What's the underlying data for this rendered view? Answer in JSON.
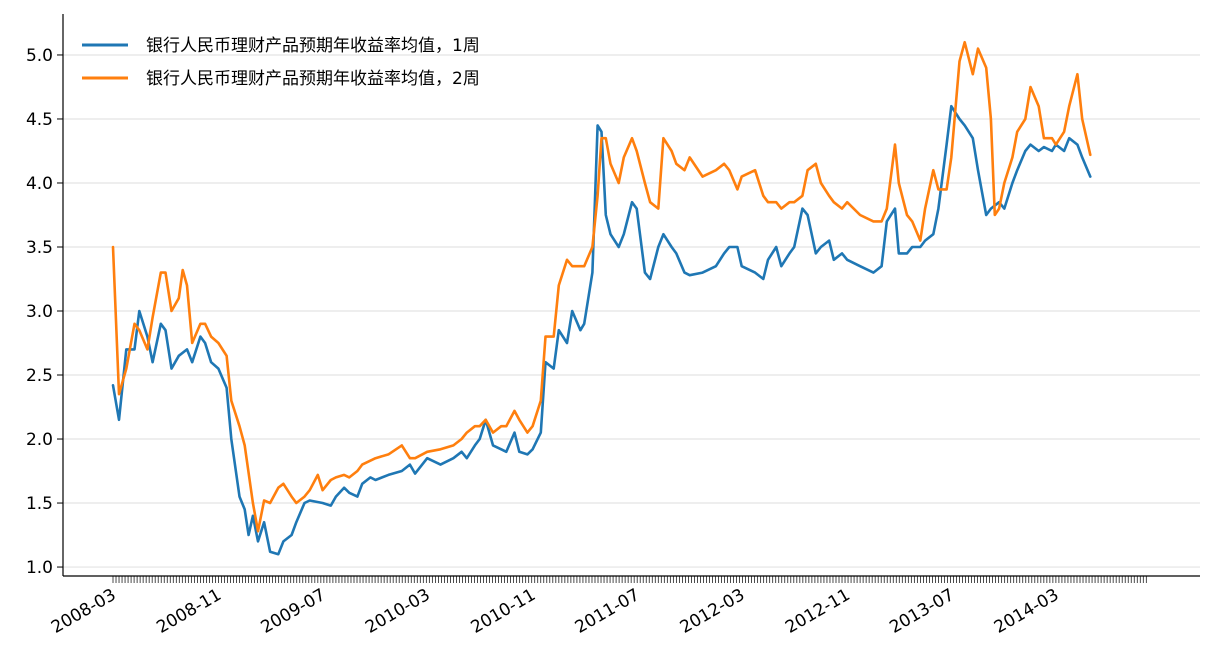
{
  "chart_data": {
    "type": "line",
    "title": "",
    "xlabel": "",
    "ylabel": "",
    "ylim": [
      0.93,
      5.32
    ],
    "y_ticks": [
      "1.0",
      "1.5",
      "2.0",
      "2.5",
      "3.0",
      "3.5",
      "4.0",
      "4.5",
      "5.0"
    ],
    "x_tick_labels": [
      "2008-03",
      "2008-11",
      "2009-07",
      "2010-03",
      "2010-11",
      "2011-07",
      "2012-03",
      "2012-11",
      "2013-07",
      "2014-03"
    ],
    "x_range": [
      "2008-03",
      "2014-10"
    ],
    "grid": "horizontal",
    "legend_position": "top-left",
    "series": [
      {
        "name": "银行人民币理财产品预期年收益率均值，1周",
        "color": "#1f77b4",
        "points": [
          [
            "2008-03",
            2.42
          ],
          [
            "2008-03-15",
            2.15
          ],
          [
            "2008-04",
            2.7
          ],
          [
            "2008-04-20",
            2.7
          ],
          [
            "2008-05",
            3.0
          ],
          [
            "2008-05-20",
            2.8
          ],
          [
            "2008-06",
            2.6
          ],
          [
            "2008-06-20",
            2.9
          ],
          [
            "2008-07",
            2.85
          ],
          [
            "2008-07-15",
            2.55
          ],
          [
            "2008-08",
            2.65
          ],
          [
            "2008-08-20",
            2.7
          ],
          [
            "2008-09",
            2.6
          ],
          [
            "2008-09-20",
            2.8
          ],
          [
            "2008-10",
            2.75
          ],
          [
            "2008-10-15",
            2.6
          ],
          [
            "2008-11",
            2.55
          ],
          [
            "2008-11-20",
            2.4
          ],
          [
            "2008-12",
            2.0
          ],
          [
            "2008-12-20",
            1.55
          ],
          [
            "2009-01",
            1.45
          ],
          [
            "2009-01-10",
            1.25
          ],
          [
            "2009-01-20",
            1.4
          ],
          [
            "2009-02",
            1.2
          ],
          [
            "2009-02-15",
            1.35
          ],
          [
            "2009-03",
            1.12
          ],
          [
            "2009-03-20",
            1.1
          ],
          [
            "2009-04",
            1.2
          ],
          [
            "2009-04-20",
            1.25
          ],
          [
            "2009-05",
            1.35
          ],
          [
            "2009-05-20",
            1.5
          ],
          [
            "2009-06",
            1.52
          ],
          [
            "2009-07",
            1.5
          ],
          [
            "2009-07-20",
            1.48
          ],
          [
            "2009-08",
            1.55
          ],
          [
            "2009-08-20",
            1.62
          ],
          [
            "2009-09",
            1.58
          ],
          [
            "2009-09-20",
            1.55
          ],
          [
            "2009-10",
            1.65
          ],
          [
            "2009-10-20",
            1.7
          ],
          [
            "2009-11",
            1.68
          ],
          [
            "2009-12",
            1.72
          ],
          [
            "2010-01",
            1.75
          ],
          [
            "2010-01-20",
            1.8
          ],
          [
            "2010-02",
            1.73
          ],
          [
            "2010-03",
            1.85
          ],
          [
            "2010-04",
            1.8
          ],
          [
            "2010-05",
            1.85
          ],
          [
            "2010-05-20",
            1.9
          ],
          [
            "2010-06",
            1.85
          ],
          [
            "2010-06-20",
            1.95
          ],
          [
            "2010-07",
            2.0
          ],
          [
            "2010-07-15",
            2.15
          ],
          [
            "2010-08",
            1.95
          ],
          [
            "2010-08-20",
            1.92
          ],
          [
            "2010-09",
            1.9
          ],
          [
            "2010-09-20",
            2.05
          ],
          [
            "2010-10",
            1.9
          ],
          [
            "2010-10-20",
            1.88
          ],
          [
            "2010-11",
            1.92
          ],
          [
            "2010-11-20",
            2.05
          ],
          [
            "2010-12",
            2.6
          ],
          [
            "2010-12-20",
            2.55
          ],
          [
            "2011-01",
            2.85
          ],
          [
            "2011-01-20",
            2.75
          ],
          [
            "2011-02",
            3.0
          ],
          [
            "2011-02-20",
            2.85
          ],
          [
            "2011-03",
            2.9
          ],
          [
            "2011-03-20",
            3.3
          ],
          [
            "2011-04",
            4.45
          ],
          [
            "2011-04-10",
            4.4
          ],
          [
            "2011-04-20",
            3.75
          ],
          [
            "2011-05",
            3.6
          ],
          [
            "2011-05-20",
            3.5
          ],
          [
            "2011-06",
            3.6
          ],
          [
            "2011-06-20",
            3.85
          ],
          [
            "2011-07",
            3.8
          ],
          [
            "2011-07-20",
            3.3
          ],
          [
            "2011-08",
            3.25
          ],
          [
            "2011-08-20",
            3.5
          ],
          [
            "2011-09",
            3.6
          ],
          [
            "2011-09-20",
            3.5
          ],
          [
            "2011-10",
            3.45
          ],
          [
            "2011-10-20",
            3.3
          ],
          [
            "2011-11",
            3.28
          ],
          [
            "2011-12",
            3.3
          ],
          [
            "2012-01",
            3.35
          ],
          [
            "2012-01-20",
            3.45
          ],
          [
            "2012-02",
            3.5
          ],
          [
            "2012-02-20",
            3.5
          ],
          [
            "2012-03",
            3.35
          ],
          [
            "2012-04",
            3.3
          ],
          [
            "2012-04-20",
            3.25
          ],
          [
            "2012-05",
            3.4
          ],
          [
            "2012-05-20",
            3.5
          ],
          [
            "2012-06",
            3.35
          ],
          [
            "2012-06-20",
            3.45
          ],
          [
            "2012-07",
            3.5
          ],
          [
            "2012-07-20",
            3.8
          ],
          [
            "2012-08",
            3.75
          ],
          [
            "2012-08-20",
            3.45
          ],
          [
            "2012-09",
            3.5
          ],
          [
            "2012-09-20",
            3.55
          ],
          [
            "2012-10",
            3.4
          ],
          [
            "2012-10-20",
            3.45
          ],
          [
            "2012-11",
            3.4
          ],
          [
            "2012-12",
            3.35
          ],
          [
            "2013-01",
            3.3
          ],
          [
            "2013-01-20",
            3.35
          ],
          [
            "2013-02",
            3.7
          ],
          [
            "2013-02-20",
            3.8
          ],
          [
            "2013-03",
            3.45
          ],
          [
            "2013-03-20",
            3.45
          ],
          [
            "2013-04",
            3.5
          ],
          [
            "2013-04-20",
            3.5
          ],
          [
            "2013-05",
            3.55
          ],
          [
            "2013-05-20",
            3.6
          ],
          [
            "2013-06",
            3.8
          ],
          [
            "2013-06-20",
            4.3
          ],
          [
            "2013-07",
            4.6
          ],
          [
            "2013-07-20",
            4.5
          ],
          [
            "2013-08",
            4.45
          ],
          [
            "2013-08-20",
            4.35
          ],
          [
            "2013-09",
            4.1
          ],
          [
            "2013-09-20",
            3.75
          ],
          [
            "2013-10",
            3.8
          ],
          [
            "2013-10-20",
            3.85
          ],
          [
            "2013-11",
            3.8
          ],
          [
            "2013-11-20",
            4.0
          ],
          [
            "2013-12",
            4.1
          ],
          [
            "2013-12-20",
            4.25
          ],
          [
            "2014-01",
            4.3
          ],
          [
            "2014-01-20",
            4.25
          ],
          [
            "2014-02",
            4.28
          ],
          [
            "2014-02-20",
            4.25
          ],
          [
            "2014-03",
            4.3
          ],
          [
            "2014-03-20",
            4.25
          ],
          [
            "2014-04",
            4.35
          ],
          [
            "2014-04-20",
            4.3
          ],
          [
            "2014-05",
            4.2
          ],
          [
            "2014-05-20",
            4.05
          ]
        ]
      },
      {
        "name": "银行人民币理财产品预期年收益率均值，2周",
        "color": "#ff7f0e",
        "points": [
          [
            "2008-03",
            3.5
          ],
          [
            "2008-03-15",
            2.35
          ],
          [
            "2008-04",
            2.55
          ],
          [
            "2008-04-20",
            2.9
          ],
          [
            "2008-05",
            2.85
          ],
          [
            "2008-05-20",
            2.7
          ],
          [
            "2008-06",
            2.95
          ],
          [
            "2008-06-20",
            3.3
          ],
          [
            "2008-07",
            3.3
          ],
          [
            "2008-07-15",
            3.0
          ],
          [
            "2008-08",
            3.1
          ],
          [
            "2008-08-10",
            3.32
          ],
          [
            "2008-08-20",
            3.2
          ],
          [
            "2008-09",
            2.75
          ],
          [
            "2008-09-20",
            2.9
          ],
          [
            "2008-10",
            2.9
          ],
          [
            "2008-10-15",
            2.8
          ],
          [
            "2008-11",
            2.75
          ],
          [
            "2008-11-20",
            2.65
          ],
          [
            "2008-12",
            2.3
          ],
          [
            "2008-12-20",
            2.1
          ],
          [
            "2009-01",
            1.95
          ],
          [
            "2009-01-20",
            1.5
          ],
          [
            "2009-02",
            1.28
          ],
          [
            "2009-02-15",
            1.52
          ],
          [
            "2009-03",
            1.5
          ],
          [
            "2009-03-20",
            1.62
          ],
          [
            "2009-04",
            1.65
          ],
          [
            "2009-04-20",
            1.55
          ],
          [
            "2009-05",
            1.5
          ],
          [
            "2009-05-20",
            1.55
          ],
          [
            "2009-06",
            1.6
          ],
          [
            "2009-06-20",
            1.72
          ],
          [
            "2009-07",
            1.6
          ],
          [
            "2009-07-20",
            1.68
          ],
          [
            "2009-08",
            1.7
          ],
          [
            "2009-08-20",
            1.72
          ],
          [
            "2009-09",
            1.7
          ],
          [
            "2009-09-20",
            1.75
          ],
          [
            "2009-10",
            1.8
          ],
          [
            "2009-11",
            1.85
          ],
          [
            "2009-12",
            1.88
          ],
          [
            "2010-01",
            1.95
          ],
          [
            "2010-01-20",
            1.85
          ],
          [
            "2010-02",
            1.85
          ],
          [
            "2010-03",
            1.9
          ],
          [
            "2010-04",
            1.92
          ],
          [
            "2010-05",
            1.95
          ],
          [
            "2010-05-20",
            2.0
          ],
          [
            "2010-06",
            2.05
          ],
          [
            "2010-06-20",
            2.1
          ],
          [
            "2010-07",
            2.1
          ],
          [
            "2010-07-15",
            2.15
          ],
          [
            "2010-08",
            2.05
          ],
          [
            "2010-08-20",
            2.1
          ],
          [
            "2010-09",
            2.1
          ],
          [
            "2010-09-20",
            2.22
          ],
          [
            "2010-10",
            2.15
          ],
          [
            "2010-10-20",
            2.05
          ],
          [
            "2010-11",
            2.1
          ],
          [
            "2010-11-20",
            2.3
          ],
          [
            "2010-12",
            2.8
          ],
          [
            "2010-12-20",
            2.8
          ],
          [
            "2011-01",
            3.2
          ],
          [
            "2011-01-20",
            3.4
          ],
          [
            "2011-02",
            3.35
          ],
          [
            "2011-02-20",
            3.35
          ],
          [
            "2011-03",
            3.35
          ],
          [
            "2011-03-20",
            3.5
          ],
          [
            "2011-04",
            3.9
          ],
          [
            "2011-04-10",
            4.35
          ],
          [
            "2011-04-20",
            4.35
          ],
          [
            "2011-05",
            4.15
          ],
          [
            "2011-05-20",
            4.0
          ],
          [
            "2011-06",
            4.2
          ],
          [
            "2011-06-20",
            4.35
          ],
          [
            "2011-07",
            4.25
          ],
          [
            "2011-07-20",
            4.0
          ],
          [
            "2011-08",
            3.85
          ],
          [
            "2011-08-20",
            3.8
          ],
          [
            "2011-09",
            4.35
          ],
          [
            "2011-09-20",
            4.25
          ],
          [
            "2011-10",
            4.15
          ],
          [
            "2011-10-20",
            4.1
          ],
          [
            "2011-11",
            4.2
          ],
          [
            "2011-12",
            4.05
          ],
          [
            "2012-01",
            4.1
          ],
          [
            "2012-01-20",
            4.15
          ],
          [
            "2012-02",
            4.1
          ],
          [
            "2012-02-20",
            3.95
          ],
          [
            "2012-03",
            4.05
          ],
          [
            "2012-04",
            4.1
          ],
          [
            "2012-04-20",
            3.9
          ],
          [
            "2012-05",
            3.85
          ],
          [
            "2012-05-20",
            3.85
          ],
          [
            "2012-06",
            3.8
          ],
          [
            "2012-06-20",
            3.85
          ],
          [
            "2012-07",
            3.85
          ],
          [
            "2012-07-20",
            3.9
          ],
          [
            "2012-08",
            4.1
          ],
          [
            "2012-08-20",
            4.15
          ],
          [
            "2012-09",
            4.0
          ],
          [
            "2012-09-20",
            3.9
          ],
          [
            "2012-10",
            3.85
          ],
          [
            "2012-10-20",
            3.8
          ],
          [
            "2012-11",
            3.85
          ],
          [
            "2012-12",
            3.75
          ],
          [
            "2013-01",
            3.7
          ],
          [
            "2013-01-20",
            3.7
          ],
          [
            "2013-02",
            3.8
          ],
          [
            "2013-02-20",
            4.3
          ],
          [
            "2013-03",
            4.0
          ],
          [
            "2013-03-20",
            3.75
          ],
          [
            "2013-04",
            3.7
          ],
          [
            "2013-04-20",
            3.55
          ],
          [
            "2013-05",
            3.8
          ],
          [
            "2013-05-20",
            4.1
          ],
          [
            "2013-06",
            3.95
          ],
          [
            "2013-06-20",
            3.95
          ],
          [
            "2013-07",
            4.2
          ],
          [
            "2013-07-20",
            4.95
          ],
          [
            "2013-08",
            5.1
          ],
          [
            "2013-08-20",
            4.85
          ],
          [
            "2013-09",
            5.05
          ],
          [
            "2013-09-20",
            4.9
          ],
          [
            "2013-10",
            4.5
          ],
          [
            "2013-10-10",
            3.75
          ],
          [
            "2013-10-20",
            3.8
          ],
          [
            "2013-11",
            4.0
          ],
          [
            "2013-11-20",
            4.2
          ],
          [
            "2013-12",
            4.4
          ],
          [
            "2013-12-20",
            4.5
          ],
          [
            "2014-01",
            4.75
          ],
          [
            "2014-01-20",
            4.6
          ],
          [
            "2014-02",
            4.35
          ],
          [
            "2014-02-20",
            4.35
          ],
          [
            "2014-03",
            4.3
          ],
          [
            "2014-03-20",
            4.4
          ],
          [
            "2014-04",
            4.6
          ],
          [
            "2014-04-20",
            4.85
          ],
          [
            "2014-05",
            4.5
          ],
          [
            "2014-05-20",
            4.22
          ]
        ]
      }
    ]
  }
}
